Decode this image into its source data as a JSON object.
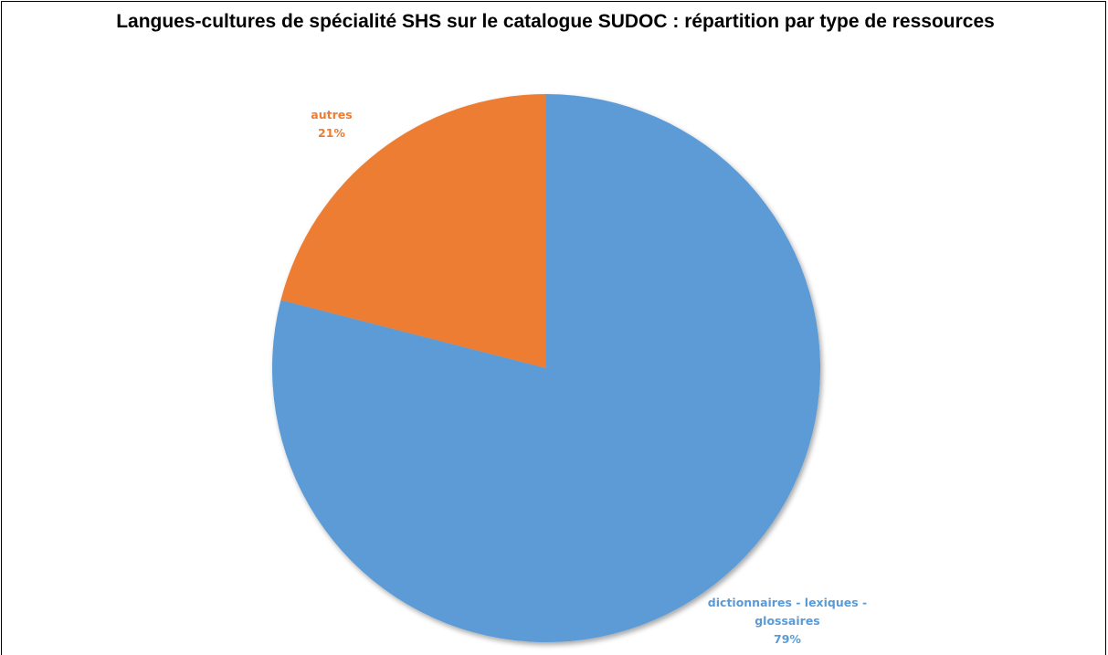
{
  "chart_data": {
    "type": "pie",
    "title": "Langues-cultures de spécialité SHS sur le catalogue SUDOC : répartition par type de ressources",
    "categories": [
      "dictionnaires - lexiques - glossaires",
      "autres"
    ],
    "values": [
      79,
      21
    ],
    "label_lines": [
      [
        "dictionnaires - lexiques -",
        "glossaires",
        "79%"
      ],
      [
        "autres",
        "21%"
      ]
    ],
    "colors": [
      "#5b9bd5",
      "#ed7d31"
    ],
    "label_colors": [
      "#5b9bd5",
      "#ed7d31"
    ],
    "legend": "none"
  }
}
